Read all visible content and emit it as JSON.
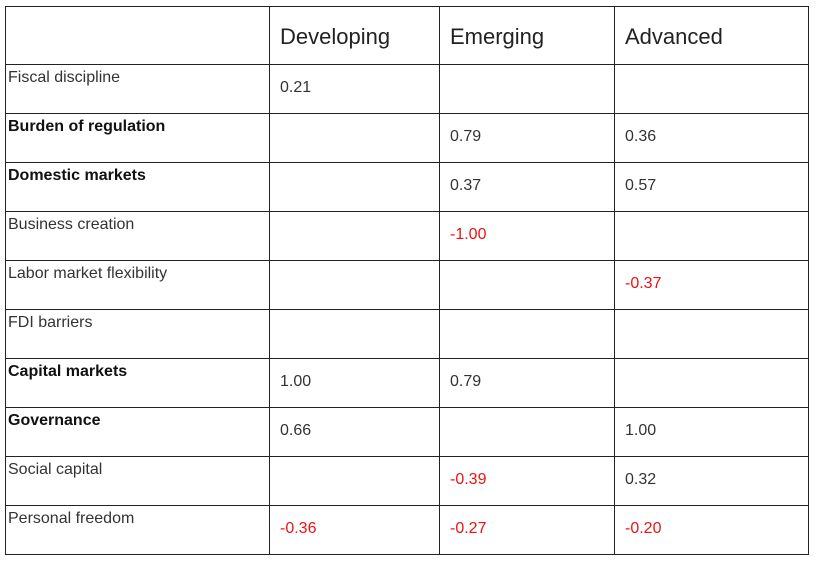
{
  "table": {
    "columns": [
      "",
      "Developing",
      "Emerging",
      "Advanced"
    ],
    "rows": [
      {
        "label": "Fiscal discipline",
        "bold": false,
        "values": [
          "0.21",
          "",
          ""
        ]
      },
      {
        "label": "Burden of regulation",
        "bold": true,
        "values": [
          "",
          "0.79",
          "0.36"
        ]
      },
      {
        "label": "Domestic markets",
        "bold": true,
        "values": [
          "",
          "0.37",
          "0.57"
        ]
      },
      {
        "label": "Business creation",
        "bold": false,
        "values": [
          "",
          "-1.00",
          ""
        ]
      },
      {
        "label": "Labor market flexibility",
        "bold": false,
        "values": [
          "",
          "",
          "-0.37"
        ]
      },
      {
        "label": "FDI barriers",
        "bold": false,
        "values": [
          "",
          "",
          ""
        ]
      },
      {
        "label": "Capital markets",
        "bold": true,
        "values": [
          "1.00",
          "0.79",
          ""
        ]
      },
      {
        "label": "Governance",
        "bold": true,
        "values": [
          "0.66",
          "",
          "1.00"
        ]
      },
      {
        "label": "Social capital",
        "bold": false,
        "values": [
          "",
          "-0.39",
          "0.32"
        ]
      },
      {
        "label": "Personal freedom",
        "bold": false,
        "values": [
          "-0.36",
          "-0.27",
          "-0.20"
        ]
      }
    ]
  },
  "colors": {
    "negative": "#ee1111",
    "text": "#333333",
    "border": "#222222"
  }
}
